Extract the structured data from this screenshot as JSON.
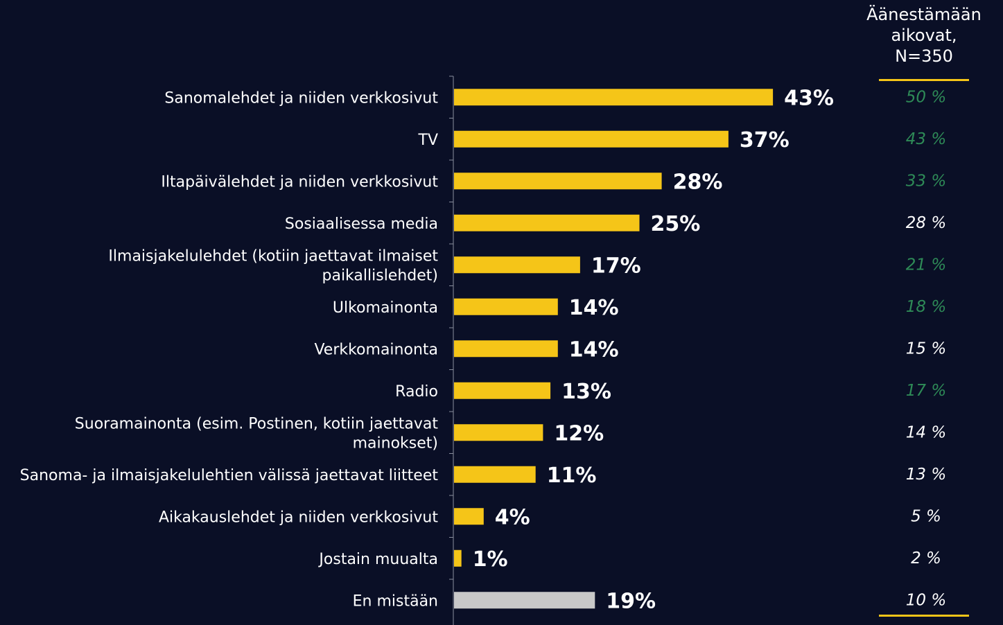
{
  "colors": {
    "background": "#0a0f26",
    "bar": "#f5c518",
    "bar_none": "#c8c8c8",
    "text": "#ffffff",
    "side_highlight": "#2e8b57",
    "side_normal": "#ffffff",
    "rule": "#f5c518"
  },
  "side_header": {
    "line1": "Äänestämään",
    "line2": "aikovat,",
    "line3": "N=350"
  },
  "chart_data": {
    "type": "bar",
    "orientation": "horizontal",
    "categories": [
      [
        "Sanomalehdet ja niiden verkkosivut"
      ],
      [
        "TV"
      ],
      [
        "Iltapäivälehdet ja niiden verkkosivut"
      ],
      [
        "Sosiaalisessa media"
      ],
      [
        "Ilmaisjakelulehdet (kotiin jaettavat ilmaiset",
        "paikallislehdet)"
      ],
      [
        "Ulkomainonta"
      ],
      [
        "Verkkomainonta"
      ],
      [
        "Radio"
      ],
      [
        "Suoramainonta (esim. Postinen, kotiin jaettavat",
        "mainokset)"
      ],
      [
        "Sanoma- ja ilmaisjakelulehtien välissä jaettavat liitteet"
      ],
      [
        "Aikakauslehdet ja niiden verkkosivut"
      ],
      [
        "Jostain muualta"
      ],
      [
        "En mistään"
      ]
    ],
    "values": [
      43,
      37,
      28,
      25,
      17,
      14,
      14,
      13,
      12,
      11,
      4,
      1,
      19
    ],
    "value_labels": [
      "43%",
      "37%",
      "28%",
      "25%",
      "17%",
      "14%",
      "14%",
      "13%",
      "12%",
      "11%",
      "4%",
      "1%",
      "19%"
    ],
    "bar_color_keys": [
      "bar",
      "bar",
      "bar",
      "bar",
      "bar",
      "bar",
      "bar",
      "bar",
      "bar",
      "bar",
      "bar",
      "bar",
      "bar_none"
    ],
    "secondary_values": [
      50,
      43,
      33,
      28,
      21,
      18,
      15,
      17,
      14,
      13,
      5,
      2,
      10
    ],
    "secondary_labels": [
      "50 %",
      "43 %",
      "33 %",
      "28 %",
      "21 %",
      "18 %",
      "15 %",
      "17 %",
      "14 %",
      "13 %",
      "5 %",
      "2 %",
      "10 %"
    ],
    "secondary_highlight": [
      true,
      true,
      true,
      false,
      true,
      true,
      false,
      true,
      false,
      false,
      false,
      false,
      false
    ],
    "xlim": [
      0,
      50
    ]
  }
}
